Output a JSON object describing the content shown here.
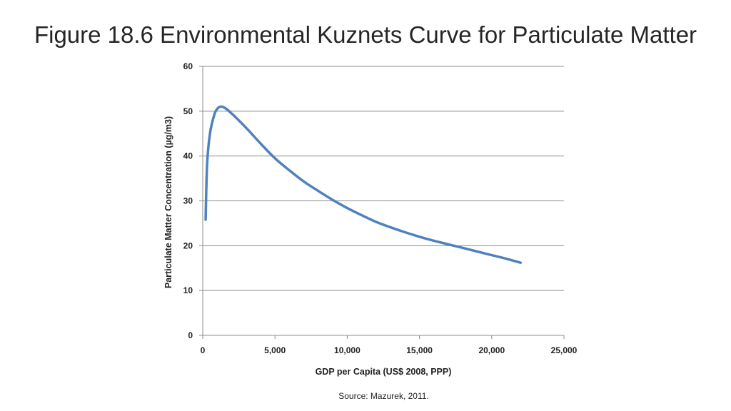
{
  "slide": {
    "title": "Figure 18.6 Environmental Kuznets Curve for Particulate Matter",
    "source": "Source: Mazurek, 2011."
  },
  "chart_data": {
    "type": "line",
    "title": "",
    "xlabel": "GDP per Capita (US$ 2008, PPP)",
    "ylabel": "Particulate Matter Concentration (µg/m3)",
    "xlim": [
      0,
      25000
    ],
    "ylim": [
      0,
      60
    ],
    "xticks": [
      0,
      5000,
      10000,
      15000,
      20000,
      25000
    ],
    "xtick_labels": [
      "0",
      "5,000",
      "10,000",
      "15,000",
      "20,000",
      "25,000"
    ],
    "yticks": [
      0,
      10,
      20,
      30,
      40,
      50,
      60
    ],
    "ytick_labels": [
      "0",
      "10",
      "20",
      "30",
      "40",
      "50",
      "60"
    ],
    "grid": "horizontal",
    "legend": "none",
    "line_color": "#4f81bd",
    "series": [
      {
        "name": "Particulate Matter",
        "x": [
          200,
          300,
          500,
          800,
          1000,
          1200,
          1500,
          2000,
          3000,
          4000,
          5000,
          6000,
          7000,
          8000,
          9000,
          10000,
          11000,
          12000,
          13000,
          14000,
          15000,
          16000,
          17000,
          18000,
          19000,
          20000,
          21000,
          22000
        ],
        "y": [
          25.8,
          38,
          45,
          49.2,
          50.5,
          51,
          50.8,
          49.5,
          46.3,
          42.8,
          39.5,
          36.8,
          34.3,
          32.2,
          30.2,
          28.4,
          26.8,
          25.3,
          24.1,
          23,
          22,
          21.1,
          20.3,
          19.5,
          18.7,
          17.9,
          17.1,
          16.2
        ]
      }
    ]
  }
}
